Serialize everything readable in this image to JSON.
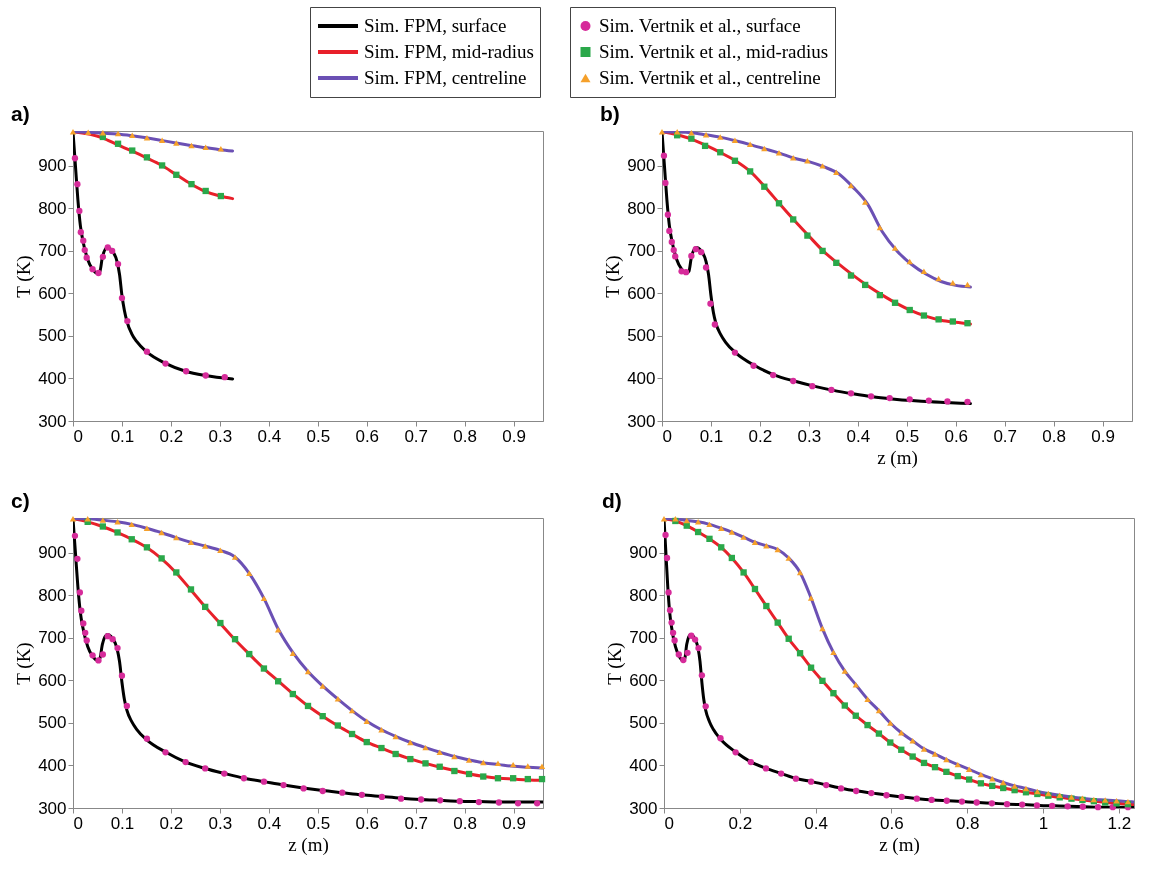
{
  "chart_data": [
    {
      "type": "line",
      "title": "a)",
      "ylabel": "T (K)",
      "xlim": [
        0,
        0.96
      ],
      "ylim": [
        300,
        982
      ],
      "xticks": [
        0,
        0.1,
        0.2,
        0.3,
        0.4,
        0.5,
        0.6,
        0.7,
        0.8,
        0.9
      ],
      "yticks": [
        300,
        400,
        500,
        600,
        700,
        800,
        900
      ],
      "legend": "top",
      "series": [
        {
          "name": "Sim. FPM, surface",
          "type": "line",
          "color": "#000000",
          "x": [
            0,
            0.005,
            0.01,
            0.015,
            0.02,
            0.03,
            0.04,
            0.05,
            0.055,
            0.06,
            0.07,
            0.08,
            0.09,
            0.095,
            0.1,
            0.105,
            0.11,
            0.12,
            0.13,
            0.15,
            0.19,
            0.23,
            0.27,
            0.326
          ],
          "values": [
            980,
            900,
            820,
            760,
            725,
            680,
            657,
            647,
            652,
            685,
            708,
            700,
            675,
            645,
            595,
            560,
            535,
            505,
            487,
            463,
            435,
            417,
            407,
            399
          ]
        },
        {
          "name": "Sim. FPM, mid-radius",
          "type": "line",
          "color": "#e8202a",
          "x": [
            0,
            0.06,
            0.09,
            0.12,
            0.15,
            0.18,
            0.21,
            0.24,
            0.27,
            0.3,
            0.326
          ],
          "values": [
            980,
            966,
            950,
            935,
            919,
            902,
            880,
            858,
            840,
            829,
            823
          ]
        },
        {
          "name": "Sim. FPM, centreline",
          "type": "line",
          "color": "#6b50b4",
          "x": [
            0,
            0.03,
            0.06,
            0.09,
            0.12,
            0.15,
            0.18,
            0.21,
            0.24,
            0.27,
            0.3,
            0.326
          ],
          "values": [
            980,
            979,
            977,
            975,
            971,
            966,
            960,
            954,
            948,
            943,
            938,
            935
          ]
        },
        {
          "name": "Sim. Vertnik et al., surface",
          "type": "scatter",
          "marker": "circle",
          "color": "#d62b9a",
          "x": [
            0.004,
            0.009,
            0.013,
            0.016,
            0.021,
            0.024,
            0.028,
            0.04,
            0.052,
            0.061,
            0.071,
            0.08,
            0.092,
            0.1,
            0.111,
            0.151,
            0.189,
            0.231,
            0.271,
            0.31
          ],
          "values": [
            918,
            857,
            794,
            744,
            724,
            702,
            684,
            657,
            648,
            686,
            708,
            700,
            669,
            589,
            535,
            463,
            435,
            417,
            407,
            403
          ]
        },
        {
          "name": "Sim. Vertnik et al., mid-radius",
          "type": "scatter",
          "marker": "square",
          "color": "#2aa84a",
          "x": [
            0.061,
            0.092,
            0.121,
            0.151,
            0.182,
            0.211,
            0.242,
            0.271,
            0.302
          ],
          "values": [
            968,
            952,
            936,
            920,
            901,
            879,
            857,
            841,
            829
          ]
        },
        {
          "name": "Sim. Vertnik et al., centreline",
          "type": "scatter",
          "marker": "triangle",
          "color": "#f5a02a",
          "x": [
            0,
            0.031,
            0.061,
            0.092,
            0.121,
            0.151,
            0.182,
            0.211,
            0.242,
            0.271,
            0.302
          ],
          "values": [
            980,
            979,
            978,
            976,
            972,
            966,
            960,
            954,
            948,
            944,
            940
          ]
        }
      ]
    },
    {
      "type": "line",
      "title": "b)",
      "xlabel": "z (m)",
      "ylabel": "T (K)",
      "xlim": [
        0,
        0.96
      ],
      "ylim": [
        300,
        982
      ],
      "xticks": [
        0,
        0.1,
        0.2,
        0.3,
        0.4,
        0.5,
        0.6,
        0.7,
        0.8,
        0.9
      ],
      "yticks": [
        300,
        400,
        500,
        600,
        700,
        800,
        900
      ],
      "series": [
        {
          "type": "line",
          "color": "#000000",
          "x": [
            0,
            0.005,
            0.01,
            0.015,
            0.02,
            0.03,
            0.04,
            0.05,
            0.055,
            0.06,
            0.07,
            0.08,
            0.09,
            0.095,
            0.1,
            0.105,
            0.11,
            0.12,
            0.13,
            0.15,
            0.19,
            0.23,
            0.27,
            0.31,
            0.35,
            0.39,
            0.43,
            0.47,
            0.51,
            0.55,
            0.59,
            0.63
          ],
          "values": [
            980,
            900,
            820,
            760,
            725,
            680,
            657,
            647,
            652,
            685,
            708,
            700,
            675,
            645,
            595,
            555,
            530,
            503,
            485,
            461,
            430,
            408,
            394,
            382,
            372,
            364,
            357,
            352,
            348,
            345,
            343,
            341
          ]
        },
        {
          "type": "line",
          "color": "#e8202a",
          "x": [
            0,
            0.03,
            0.06,
            0.09,
            0.12,
            0.15,
            0.18,
            0.21,
            0.24,
            0.27,
            0.3,
            0.33,
            0.36,
            0.39,
            0.42,
            0.45,
            0.48,
            0.51,
            0.54,
            0.57,
            0.6,
            0.63
          ],
          "values": [
            980,
            973,
            963,
            948,
            931,
            912,
            887,
            851,
            811,
            772,
            735,
            699,
            670,
            643,
            618,
            596,
            576,
            559,
            546,
            537,
            532,
            528
          ]
        },
        {
          "type": "line",
          "color": "#6b50b4",
          "x": [
            0,
            0.06,
            0.09,
            0.12,
            0.15,
            0.18,
            0.21,
            0.24,
            0.27,
            0.3,
            0.33,
            0.36,
            0.39,
            0.42,
            0.45,
            0.48,
            0.51,
            0.54,
            0.57,
            0.6,
            0.63
          ],
          "values": [
            980,
            978,
            973,
            967,
            959,
            950,
            940,
            930,
            918,
            910,
            898,
            882,
            850,
            810,
            745,
            700,
            668,
            645,
            628,
            619,
            615
          ]
        },
        {
          "type": "scatter",
          "marker": "circle",
          "color": "#d62b9a",
          "x": [
            0.004,
            0.007,
            0.012,
            0.015,
            0.02,
            0.024,
            0.027,
            0.04,
            0.049,
            0.06,
            0.069,
            0.08,
            0.09,
            0.099,
            0.108,
            0.149,
            0.187,
            0.227,
            0.268,
            0.307,
            0.346,
            0.386,
            0.427,
            0.465,
            0.506,
            0.545,
            0.583,
            0.624
          ],
          "values": [
            924,
            860,
            785,
            747,
            721,
            702,
            687,
            652,
            650,
            688,
            704,
            697,
            661,
            576,
            527,
            461,
            430,
            408,
            394,
            382,
            373,
            365,
            358,
            354,
            351,
            348,
            346,
            345
          ]
        },
        {
          "type": "scatter",
          "marker": "square",
          "color": "#2aa84a",
          "x": [
            0.031,
            0.06,
            0.088,
            0.119,
            0.149,
            0.18,
            0.209,
            0.239,
            0.268,
            0.297,
            0.328,
            0.356,
            0.386,
            0.415,
            0.445,
            0.476,
            0.506,
            0.535,
            0.565,
            0.594,
            0.624
          ],
          "values": [
            972,
            964,
            947,
            932,
            912,
            887,
            851,
            812,
            774,
            736,
            700,
            672,
            642,
            620,
            596,
            578,
            561,
            548,
            539,
            534,
            530
          ]
        },
        {
          "type": "scatter",
          "marker": "triangle",
          "color": "#f5a02a",
          "x": [
            0,
            0.031,
            0.06,
            0.09,
            0.119,
            0.149,
            0.18,
            0.209,
            0.239,
            0.268,
            0.297,
            0.328,
            0.356,
            0.386,
            0.415,
            0.445,
            0.476,
            0.506,
            0.535,
            0.565,
            0.594,
            0.624
          ],
          "values": [
            980,
            980,
            978,
            973,
            968,
            960,
            951,
            941,
            931,
            919,
            912,
            900,
            885,
            854,
            815,
            755,
            707,
            675,
            652,
            635,
            625,
            621
          ]
        }
      ]
    },
    {
      "type": "line",
      "title": "c)",
      "xlabel": "z (m)",
      "ylabel": "T (K)",
      "xlim": [
        0,
        0.96
      ],
      "ylim": [
        300,
        982
      ],
      "xticks": [
        0,
        0.1,
        0.2,
        0.3,
        0.4,
        0.5,
        0.6,
        0.7,
        0.8,
        0.9
      ],
      "yticks": [
        300,
        400,
        500,
        600,
        700,
        800,
        900
      ],
      "series": [
        {
          "type": "line",
          "color": "#000000",
          "x": [
            0,
            0.005,
            0.01,
            0.015,
            0.02,
            0.03,
            0.04,
            0.05,
            0.055,
            0.06,
            0.07,
            0.08,
            0.09,
            0.095,
            0.1,
            0.105,
            0.11,
            0.12,
            0.13,
            0.15,
            0.19,
            0.23,
            0.27,
            0.31,
            0.35,
            0.39,
            0.43,
            0.47,
            0.51,
            0.55,
            0.59,
            0.63,
            0.67,
            0.71,
            0.75,
            0.79,
            0.83,
            0.87,
            0.91,
            0.96
          ],
          "values": [
            980,
            900,
            820,
            760,
            725,
            680,
            657,
            647,
            652,
            685,
            708,
            700,
            675,
            645,
            595,
            555,
            530,
            503,
            485,
            461,
            431,
            408,
            393,
            381,
            370,
            362,
            354,
            347,
            341,
            336,
            331,
            327,
            323,
            320,
            318,
            316,
            315,
            314,
            314,
            314
          ]
        },
        {
          "type": "line",
          "color": "#e8202a",
          "x": [
            0,
            0.03,
            0.06,
            0.09,
            0.12,
            0.15,
            0.18,
            0.21,
            0.24,
            0.27,
            0.3,
            0.33,
            0.36,
            0.39,
            0.42,
            0.45,
            0.48,
            0.51,
            0.54,
            0.57,
            0.6,
            0.63,
            0.66,
            0.69,
            0.72,
            0.75,
            0.78,
            0.81,
            0.84,
            0.87,
            0.9,
            0.93,
            0.96
          ],
          "values": [
            980,
            973,
            962,
            948,
            932,
            913,
            887,
            854,
            814,
            773,
            735,
            697,
            662,
            628,
            598,
            568,
            540,
            516,
            494,
            474,
            455,
            441,
            427,
            415,
            405,
            396,
            388,
            380,
            374,
            370,
            368,
            366,
            365
          ]
        },
        {
          "type": "line",
          "color": "#6b50b4",
          "x": [
            0,
            0.03,
            0.06,
            0.09,
            0.12,
            0.15,
            0.18,
            0.21,
            0.24,
            0.27,
            0.3,
            0.33,
            0.36,
            0.39,
            0.42,
            0.45,
            0.48,
            0.51,
            0.54,
            0.57,
            0.6,
            0.63,
            0.66,
            0.69,
            0.72,
            0.75,
            0.78,
            0.81,
            0.84,
            0.87,
            0.9,
            0.93,
            0.96
          ],
          "values": [
            980,
            980,
            977,
            973,
            967,
            958,
            948,
            936,
            925,
            916,
            906,
            891,
            852,
            793,
            719,
            664,
            621,
            587,
            557,
            529,
            504,
            484,
            468,
            454,
            442,
            431,
            421,
            413,
            406,
            402,
            398,
            396,
            394
          ]
        },
        {
          "type": "scatter",
          "marker": "circle",
          "color": "#d62b9a",
          "x": [
            0.004,
            0.009,
            0.014,
            0.017,
            0.021,
            0.025,
            0.028,
            0.04,
            0.052,
            0.061,
            0.071,
            0.081,
            0.091,
            0.1,
            0.11,
            0.151,
            0.189,
            0.23,
            0.27,
            0.309,
            0.349,
            0.39,
            0.43,
            0.471,
            0.51,
            0.55,
            0.59,
            0.631,
            0.67,
            0.711,
            0.75,
            0.79,
            0.829,
            0.87,
            0.909,
            0.948
          ],
          "values": [
            940,
            886,
            807,
            764,
            734,
            712,
            694,
            659,
            647,
            661,
            704,
            697,
            676,
            611,
            540,
            463,
            431,
            408,
            393,
            381,
            370,
            362,
            354,
            346,
            340,
            336,
            331,
            326,
            322,
            320,
            318,
            316,
            314,
            313,
            311,
            311
          ]
        },
        {
          "type": "scatter",
          "marker": "square",
          "color": "#2aa84a",
          "x": [
            0.03,
            0.061,
            0.091,
            0.12,
            0.151,
            0.181,
            0.211,
            0.241,
            0.27,
            0.301,
            0.331,
            0.36,
            0.39,
            0.419,
            0.449,
            0.48,
            0.51,
            0.541,
            0.57,
            0.6,
            0.63,
            0.659,
            0.689,
            0.72,
            0.749,
            0.779,
            0.809,
            0.838,
            0.868,
            0.899,
            0.929,
            0.958
          ],
          "values": [
            973,
            962,
            948,
            932,
            913,
            887,
            854,
            814,
            773,
            735,
            697,
            662,
            628,
            598,
            568,
            540,
            516,
            494,
            474,
            455,
            441,
            427,
            415,
            405,
            397,
            387,
            380,
            374,
            370,
            370,
            368,
            368
          ]
        },
        {
          "type": "scatter",
          "marker": "triangle",
          "color": "#f5a02a",
          "x": [
            0,
            0.03,
            0.061,
            0.091,
            0.12,
            0.151,
            0.181,
            0.211,
            0.241,
            0.27,
            0.301,
            0.331,
            0.36,
            0.39,
            0.419,
            0.449,
            0.48,
            0.51,
            0.541,
            0.57,
            0.6,
            0.63,
            0.659,
            0.689,
            0.72,
            0.749,
            0.779,
            0.809,
            0.838,
            0.868,
            0.899,
            0.929,
            0.958
          ],
          "values": [
            980,
            980,
            977,
            973,
            967,
            958,
            948,
            936,
            925,
            916,
            906,
            890,
            852,
            793,
            719,
            664,
            621,
            587,
            557,
            529,
            504,
            484,
            468,
            454,
            442,
            431,
            421,
            413,
            407,
            405,
            402,
            399,
            398
          ]
        }
      ]
    },
    {
      "type": "line",
      "title": "d)",
      "xlabel": "z (m)",
      "ylabel": "T (K)",
      "xlim": [
        0,
        1.24
      ],
      "ylim": [
        300,
        982
      ],
      "xticks": [
        0,
        0.2,
        0.4,
        0.6,
        0.8,
        1,
        1.2
      ],
      "yticks": [
        300,
        400,
        500,
        600,
        700,
        800,
        900
      ],
      "series": [
        {
          "type": "line",
          "color": "#000000",
          "x": [
            0,
            0.005,
            0.01,
            0.015,
            0.02,
            0.03,
            0.04,
            0.05,
            0.055,
            0.06,
            0.07,
            0.08,
            0.09,
            0.095,
            0.1,
            0.105,
            0.11,
            0.12,
            0.13,
            0.15,
            0.19,
            0.23,
            0.27,
            0.31,
            0.35,
            0.39,
            0.43,
            0.47,
            0.51,
            0.55,
            0.59,
            0.63,
            0.67,
            0.71,
            0.75,
            0.79,
            0.83,
            0.87,
            0.91,
            0.95,
            0.99,
            1.03,
            1.07,
            1.11,
            1.15,
            1.19,
            1.24
          ],
          "values": [
            980,
            900,
            820,
            760,
            725,
            680,
            657,
            647,
            652,
            685,
            708,
            700,
            675,
            645,
            595,
            555,
            530,
            503,
            485,
            461,
            431,
            408,
            393,
            381,
            369,
            362,
            354,
            346,
            340,
            335,
            330,
            326,
            322,
            319,
            317,
            315,
            313,
            311,
            309,
            308,
            306,
            305,
            304,
            303,
            302,
            302,
            302
          ]
        },
        {
          "type": "line",
          "color": "#e8202a",
          "x": [
            0,
            0.03,
            0.06,
            0.09,
            0.12,
            0.151,
            0.179,
            0.21,
            0.24,
            0.27,
            0.3,
            0.329,
            0.359,
            0.388,
            0.418,
            0.447,
            0.477,
            0.506,
            0.537,
            0.567,
            0.597,
            0.626,
            0.656,
            0.686,
            0.715,
            0.745,
            0.775,
            0.805,
            0.836,
            0.866,
            0.895,
            0.925,
            0.955,
            0.985,
            1.014,
            1.044,
            1.075,
            1.104,
            1.134,
            1.164,
            1.194,
            1.224,
            1.24
          ],
          "values": [
            980,
            975,
            964,
            949,
            933,
            913,
            888,
            854,
            815,
            775,
            736,
            698,
            664,
            630,
            599,
            570,
            541,
            517,
            495,
            475,
            454,
            437,
            421,
            406,
            396,
            385,
            375,
            367,
            358,
            352,
            347,
            342,
            337,
            333,
            329,
            325,
            322,
            319,
            316,
            313,
            311,
            309,
            308
          ]
        },
        {
          "type": "line",
          "color": "#6b50b4",
          "x": [
            0,
            0.03,
            0.06,
            0.09,
            0.12,
            0.151,
            0.179,
            0.21,
            0.24,
            0.27,
            0.3,
            0.329,
            0.359,
            0.388,
            0.418,
            0.447,
            0.477,
            0.506,
            0.537,
            0.567,
            0.597,
            0.626,
            0.656,
            0.686,
            0.715,
            0.745,
            0.775,
            0.805,
            0.836,
            0.866,
            0.895,
            0.925,
            0.955,
            0.985,
            1.014,
            1.044,
            1.075,
            1.104,
            1.134,
            1.164,
            1.194,
            1.224,
            1.24
          ],
          "values": [
            980,
            980,
            976,
            973,
            967,
            958,
            949,
            937,
            925,
            917,
            908,
            888,
            854,
            794,
            722,
            666,
            622,
            590,
            556,
            529,
            500,
            477,
            458,
            439,
            427,
            414,
            402,
            391,
            379,
            369,
            360,
            352,
            346,
            339,
            334,
            330,
            326,
            323,
            320,
            319,
            317,
            315,
            314
          ]
        },
        {
          "type": "scatter",
          "marker": "circle",
          "color": "#d62b9a",
          "x": [
            0.004,
            0.008,
            0.012,
            0.016,
            0.02,
            0.024,
            0.028,
            0.039,
            0.051,
            0.062,
            0.072,
            0.082,
            0.091,
            0.1,
            0.11,
            0.149,
            0.189,
            0.229,
            0.269,
            0.309,
            0.348,
            0.388,
            0.428,
            0.467,
            0.507,
            0.547,
            0.587,
            0.627,
            0.667,
            0.706,
            0.746,
            0.786,
            0.825,
            0.865,
            0.905,
            0.945,
            0.984,
            1.024,
            1.065,
            1.105,
            1.145,
            1.184,
            1.224
          ],
          "values": [
            942,
            888,
            807,
            765,
            736,
            712,
            694,
            661,
            648,
            665,
            705,
            696,
            676,
            612,
            539,
            464,
            431,
            408,
            393,
            381,
            369,
            362,
            354,
            346,
            340,
            335,
            330,
            326,
            322,
            319,
            317,
            315,
            313,
            311,
            309,
            308,
            306,
            305,
            304,
            303,
            302,
            302,
            302
          ]
        },
        {
          "type": "scatter",
          "marker": "square",
          "color": "#2aa84a",
          "x": [
            0.03,
            0.06,
            0.09,
            0.12,
            0.151,
            0.179,
            0.21,
            0.24,
            0.27,
            0.3,
            0.329,
            0.359,
            0.388,
            0.418,
            0.447,
            0.477,
            0.506,
            0.537,
            0.567,
            0.597,
            0.626,
            0.656,
            0.686,
            0.715,
            0.745,
            0.775,
            0.805,
            0.836,
            0.866,
            0.895,
            0.925,
            0.955,
            0.985,
            1.014,
            1.044,
            1.075,
            1.104,
            1.134,
            1.164,
            1.194,
            1.224
          ],
          "values": [
            975,
            964,
            949,
            933,
            913,
            888,
            854,
            815,
            775,
            736,
            698,
            664,
            630,
            599,
            570,
            541,
            517,
            495,
            475,
            454,
            437,
            421,
            406,
            396,
            385,
            375,
            367,
            358,
            352,
            347,
            342,
            337,
            333,
            329,
            325,
            322,
            319,
            316,
            313,
            311,
            309
          ]
        },
        {
          "type": "scatter",
          "marker": "triangle",
          "color": "#f5a02a",
          "x": [
            0,
            0.03,
            0.06,
            0.09,
            0.12,
            0.151,
            0.179,
            0.21,
            0.24,
            0.27,
            0.3,
            0.329,
            0.359,
            0.388,
            0.418,
            0.447,
            0.477,
            0.506,
            0.537,
            0.567,
            0.597,
            0.626,
            0.656,
            0.686,
            0.715,
            0.745,
            0.775,
            0.805,
            0.836,
            0.866,
            0.895,
            0.925,
            0.955,
            0.985,
            1.014,
            1.044,
            1.075,
            1.104,
            1.134,
            1.164,
            1.194,
            1.224
          ],
          "values": [
            980,
            980,
            976,
            973,
            967,
            958,
            949,
            937,
            925,
            917,
            908,
            888,
            854,
            794,
            722,
            666,
            622,
            590,
            556,
            529,
            500,
            477,
            458,
            439,
            427,
            414,
            402,
            391,
            379,
            369,
            360,
            352,
            346,
            339,
            334,
            330,
            326,
            323,
            320,
            319,
            317,
            315
          ]
        }
      ]
    }
  ]
}
